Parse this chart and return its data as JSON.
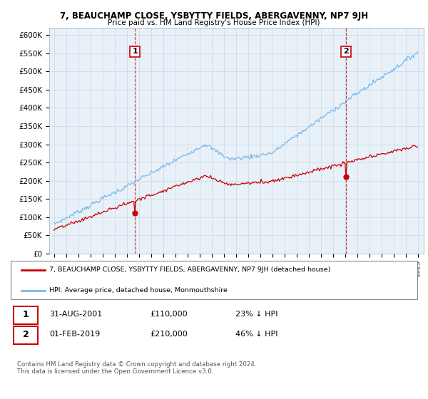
{
  "title": "7, BEAUCHAMP CLOSE, YSBYTTY FIELDS, ABERGAVENNY, NP7 9JH",
  "subtitle": "Price paid vs. HM Land Registry's House Price Index (HPI)",
  "ylim": [
    0,
    620000
  ],
  "yticks": [
    0,
    50000,
    100000,
    150000,
    200000,
    250000,
    300000,
    350000,
    400000,
    450000,
    500000,
    550000,
    600000
  ],
  "ytick_labels": [
    "£0",
    "£50K",
    "£100K",
    "£150K",
    "£200K",
    "£250K",
    "£300K",
    "£350K",
    "£400K",
    "£450K",
    "£500K",
    "£550K",
    "£600K"
  ],
  "hpi_color": "#7ab8e8",
  "price_color": "#cc0000",
  "chart_bg": "#e8f0f8",
  "marker1_date": 2001.667,
  "marker1_price": 110000,
  "marker2_date": 2019.083,
  "marker2_price": 210000,
  "legend_line1": "7, BEAUCHAMP CLOSE, YSBYTTY FIELDS, ABERGAVENNY, NP7 9JH (detached house)",
  "legend_line2": "HPI: Average price, detached house, Monmouthshire",
  "table_row1": [
    "1",
    "31-AUG-2001",
    "£110,000",
    "23% ↓ HPI"
  ],
  "table_row2": [
    "2",
    "01-FEB-2019",
    "£210,000",
    "46% ↓ HPI"
  ],
  "footer": "Contains HM Land Registry data © Crown copyright and database right 2024.\nThis data is licensed under the Open Government Licence v3.0.",
  "background_color": "#ffffff",
  "grid_color": "#c8d8e8"
}
